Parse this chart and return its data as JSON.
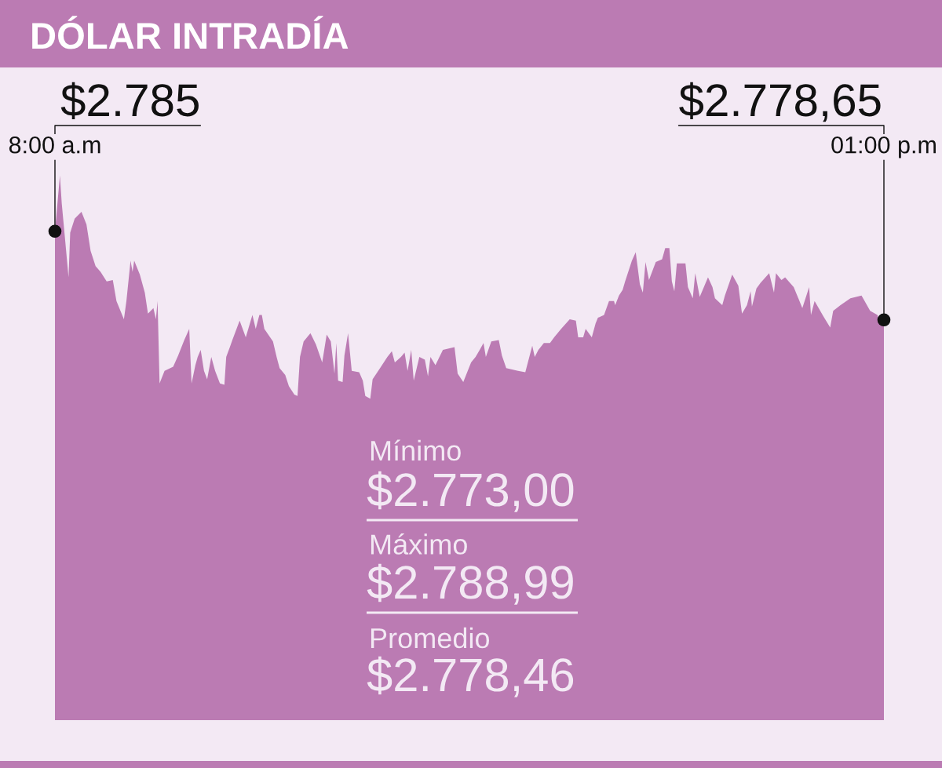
{
  "chart_data": {
    "type": "area",
    "title": "DÓLAR INTRADÍA",
    "color": "#bb7bb3",
    "x": [
      8.0,
      8.03,
      8.041,
      8.062,
      8.082,
      8.092,
      8.119,
      8.16,
      8.19,
      8.215,
      8.245,
      8.275,
      8.312,
      8.349,
      8.371,
      8.416,
      8.431,
      8.456,
      8.468,
      8.478,
      8.512,
      8.542,
      8.561,
      8.594,
      8.609,
      8.619,
      8.631,
      8.661,
      8.713,
      8.743,
      8.78,
      8.81,
      8.824,
      8.847,
      8.861,
      8.879,
      8.899,
      8.918,
      8.943,
      8.966,
      8.995,
      9.022,
      9.033,
      9.055,
      9.07,
      9.114,
      9.151,
      9.191,
      9.211,
      9.233,
      9.248,
      9.263,
      9.315,
      9.337,
      9.355,
      9.389,
      9.411,
      9.444,
      9.463,
      9.478,
      9.5,
      9.541,
      9.574,
      9.612,
      9.639,
      9.664,
      9.686,
      9.697,
      9.708,
      9.735,
      9.746,
      9.768,
      9.79,
      9.835,
      9.857,
      9.872,
      9.902,
      9.916,
      9.961,
      10.005,
      10.032,
      10.05,
      10.087,
      10.109,
      10.127,
      10.149,
      10.164,
      10.198,
      10.231,
      10.25,
      10.265,
      10.295,
      10.34,
      10.41,
      10.429,
      10.463,
      10.51,
      10.537,
      10.562,
      10.585,
      10.599,
      10.632,
      10.677,
      10.696,
      10.722,
      10.793,
      10.837,
      10.879,
      10.894,
      10.916,
      10.949,
      10.986,
      11.011,
      11.053,
      11.105,
      11.142,
      11.156,
      11.186,
      11.201,
      11.238,
      11.261,
      11.275,
      11.312,
      11.342,
      11.372,
      11.379,
      11.402,
      11.424,
      11.439,
      11.48,
      11.503,
      11.528,
      11.546,
      11.562,
      11.583,
      11.624,
      11.662,
      11.681,
      11.706,
      11.721,
      11.736,
      11.751,
      11.803,
      11.818,
      11.847,
      11.862,
      11.889,
      11.939,
      11.966,
      11.981,
      12.025,
      12.041,
      12.085,
      12.122,
      12.144,
      12.174,
      12.196,
      12.204,
      12.231,
      12.256,
      12.308,
      12.337,
      12.349,
      12.382,
      12.404,
      12.456,
      12.508,
      12.549,
      12.56,
      12.582,
      12.635,
      12.676,
      12.694,
      12.738,
      12.798,
      12.865,
      12.917,
      12.961,
      12.976,
      13.0
    ],
    "values": [
      2785,
      2788.99,
      2787.0,
      2784.3,
      2781.7,
      2784.9,
      2785.9,
      2786.4,
      2785.5,
      2783.6,
      2782.5,
      2782.1,
      2781.4,
      2781.5,
      2780.0,
      2778.7,
      2780.0,
      2782.9,
      2782.1,
      2782.9,
      2781.9,
      2780.6,
      2779.1,
      2779.5,
      2778.7,
      2780.0,
      2774.1,
      2775.0,
      2775.3,
      2776.1,
      2777.2,
      2778.0,
      2774.1,
      2775.4,
      2776.0,
      2776.5,
      2775.0,
      2774.4,
      2776.0,
      2775.0,
      2774.1,
      2774.0,
      2776.0,
      2776.7,
      2777.2,
      2778.6,
      2777.4,
      2779.0,
      2778.0,
      2779.0,
      2779.0,
      2778.0,
      2777.1,
      2776.0,
      2775.2,
      2774.7,
      2773.9,
      2773.3,
      2773.2,
      2776.0,
      2777.1,
      2777.7,
      2776.9,
      2775.6,
      2777.6,
      2777.1,
      2774.8,
      2777.0,
      2774.3,
      2774.2,
      2776.1,
      2777.7,
      2775.0,
      2774.9,
      2774.3,
      2773.2,
      2773.0,
      2774.4,
      2775.2,
      2776.0,
      2776.4,
      2775.6,
      2776.0,
      2776.3,
      2775.0,
      2776.5,
      2774.3,
      2776.0,
      2775.8,
      2774.6,
      2776.0,
      2775.4,
      2776.5,
      2776.7,
      2774.8,
      2774.2,
      2775.6,
      2776.0,
      2776.5,
      2777.0,
      2776.0,
      2777.1,
      2777.2,
      2776.1,
      2775.2,
      2775.0,
      2774.9,
      2776.8,
      2776.0,
      2776.5,
      2777.0,
      2777.0,
      2777.4,
      2778.0,
      2778.7,
      2778.6,
      2777.4,
      2777.4,
      2778.0,
      2777.4,
      2778.4,
      2778.8,
      2779.0,
      2780.0,
      2780.0,
      2779.7,
      2780.4,
      2780.8,
      2781.4,
      2782.9,
      2783.5,
      2781.2,
      2780.6,
      2782.8,
      2781.5,
      2782.8,
      2783.0,
      2783.8,
      2783.8,
      2781.4,
      2780.7,
      2782.7,
      2782.7,
      2781.0,
      2780.2,
      2782.0,
      2780.3,
      2781.7,
      2781.0,
      2780.2,
      2779.7,
      2780.4,
      2781.9,
      2781.1,
      2779.1,
      2779.7,
      2780.7,
      2779.6,
      2780.9,
      2781.3,
      2782.0,
      2780.6,
      2782.0,
      2781.5,
      2781.7,
      2781.0,
      2779.5,
      2781.0,
      2779.0,
      2780.0,
      2778.9,
      2778.1,
      2779.3,
      2779.7,
      2780.2,
      2780.4,
      2779.3,
      2779.0,
      2778.4,
      2778.65
    ],
    "value_labels": [
      "$2.785",
      null,
      null,
      null,
      null,
      null,
      null,
      null,
      null,
      null,
      null,
      null,
      null,
      null,
      null,
      null,
      null,
      null,
      null,
      null,
      null,
      null,
      null,
      null,
      null,
      null,
      null,
      null,
      null,
      null,
      null,
      null,
      null,
      null,
      null,
      null,
      null,
      null,
      null,
      null,
      null,
      null,
      null,
      null,
      null,
      null,
      null,
      null,
      null,
      null,
      null,
      null,
      null,
      null,
      null,
      null,
      null,
      null,
      null,
      null,
      null,
      null,
      null,
      null,
      null,
      null,
      null,
      null,
      null,
      null,
      null,
      null,
      null,
      null,
      null,
      null,
      null,
      null,
      null,
      null,
      null,
      null,
      null,
      null,
      null,
      null,
      null,
      null,
      null,
      null,
      null,
      null,
      null,
      null,
      null,
      null,
      null,
      null,
      null,
      null,
      null,
      null,
      null,
      null,
      null,
      null,
      null,
      null,
      null,
      null,
      null,
      null,
      null,
      null,
      null,
      null,
      null,
      null,
      null,
      null,
      null,
      null,
      null,
      null,
      null,
      null,
      null,
      null,
      null,
      null,
      null,
      null,
      null,
      null,
      null,
      null,
      null,
      null,
      null,
      null,
      null,
      null,
      null,
      null,
      null,
      null,
      null,
      null,
      null,
      null,
      null,
      null,
      null,
      null,
      null,
      null,
      null,
      null,
      null,
      null,
      null,
      null,
      null,
      null,
      null,
      null,
      null,
      null,
      null,
      null,
      null,
      null,
      null,
      null,
      null,
      null,
      null,
      null,
      null,
      "$2.778,65"
    ],
    "xlim": [
      8,
      13
    ],
    "xticks": [
      {
        "value": 8,
        "label": "8:00 a.m"
      },
      {
        "value": 13,
        "label": "01:00 p.m"
      }
    ],
    "tick_labels": "x",
    "annotations": [
      "Mínimo",
      "$2.773,00",
      "Máximo",
      "$2.788,99",
      "Promedio",
      "$2.778,46"
    ]
  }
}
